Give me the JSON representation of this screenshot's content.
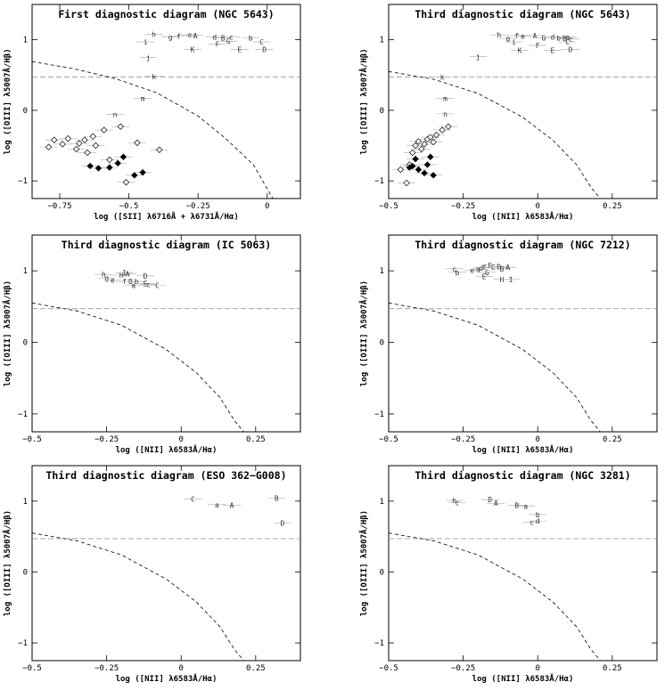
{
  "chart_data": [
    {
      "type": "scatter",
      "title": "First diagnostic diagram (NGC 5643)",
      "xlabel": "log ([SII] λ6716Å + λ6731Å/Hα)",
      "ylabel": "log ([OIII] λ5007Å/Hβ)",
      "xlim": [
        -0.85,
        0.12
      ],
      "ylim": [
        -1.25,
        1.5
      ],
      "xticks": [
        -0.75,
        -0.5,
        -0.25,
        0
      ],
      "xticklabels": [
        "−0.75",
        "−0.5",
        "−0.25",
        "0"
      ],
      "yticks": [
        -1,
        0,
        1
      ],
      "yticklabels": [
        "−1",
        "0",
        "1"
      ],
      "dashed_curve": [
        [
          -0.85,
          0.69
        ],
        [
          -0.7,
          0.59
        ],
        [
          -0.55,
          0.45
        ],
        [
          -0.4,
          0.25
        ],
        [
          -0.25,
          -0.08
        ],
        [
          -0.15,
          -0.4
        ],
        [
          -0.05,
          -0.77
        ],
        [
          0.02,
          -1.25
        ]
      ],
      "reference_line_y": 0.47,
      "series": [
        {
          "marker": "label",
          "points": [
            {
              "label": "h",
              "x": -0.41,
              "y": 1.08
            },
            {
              "label": "g",
              "x": -0.35,
              "y": 1.04
            },
            {
              "label": "f",
              "x": -0.32,
              "y": 1.05
            },
            {
              "label": "e",
              "x": -0.28,
              "y": 1.07
            },
            {
              "label": "A",
              "x": -0.26,
              "y": 1.06
            },
            {
              "label": "i",
              "x": -0.44,
              "y": 0.97
            },
            {
              "label": "d",
              "x": -0.19,
              "y": 1.04
            },
            {
              "label": "B",
              "x": -0.16,
              "y": 1.03
            },
            {
              "label": "c",
              "x": -0.13,
              "y": 1.04
            },
            {
              "label": "F",
              "x": -0.18,
              "y": 0.94
            },
            {
              "label": "G",
              "x": -0.14,
              "y": 0.98
            },
            {
              "label": "K",
              "x": -0.27,
              "y": 0.86
            },
            {
              "label": "E",
              "x": -0.1,
              "y": 0.86
            },
            {
              "label": "b",
              "x": -0.06,
              "y": 1.03
            },
            {
              "label": "C",
              "x": -0.02,
              "y": 0.97
            },
            {
              "label": "D",
              "x": -0.01,
              "y": 0.86
            },
            {
              "label": "j",
              "x": -0.43,
              "y": 0.75
            },
            {
              "label": "k",
              "x": -0.41,
              "y": 0.48
            },
            {
              "label": "m",
              "x": -0.45,
              "y": 0.17
            },
            {
              "label": "n",
              "x": -0.55,
              "y": -0.06
            }
          ]
        },
        {
          "marker": "open-diamond",
          "points": [
            [
              -0.79,
              -0.52
            ],
            [
              -0.77,
              -0.42
            ],
            [
              -0.74,
              -0.48
            ],
            [
              -0.72,
              -0.4
            ],
            [
              -0.69,
              -0.55
            ],
            [
              -0.68,
              -0.47
            ],
            [
              -0.66,
              -0.42
            ],
            [
              -0.65,
              -0.6
            ],
            [
              -0.63,
              -0.37
            ],
            [
              -0.62,
              -0.5
            ],
            [
              -0.59,
              -0.28
            ],
            [
              -0.53,
              -0.23
            ],
            [
              -0.47,
              -0.46
            ],
            [
              -0.39,
              -0.56
            ],
            [
              -0.51,
              -1.02
            ],
            [
              -0.57,
              -0.7
            ]
          ]
        },
        {
          "marker": "filled-diamond",
          "points": [
            [
              -0.64,
              -0.79
            ],
            [
              -0.61,
              -0.82
            ],
            [
              -0.57,
              -0.81
            ],
            [
              -0.54,
              -0.75
            ],
            [
              -0.52,
              -0.66
            ],
            [
              -0.48,
              -0.92
            ],
            [
              -0.45,
              -0.88
            ]
          ]
        }
      ]
    },
    {
      "type": "scatter",
      "title": "Third diagnostic diagram (NGC 5643)",
      "xlabel": "log ([NII] λ6583Å/Hα)",
      "ylabel": "log ([OIII] λ5007Å/Hβ)",
      "xlim": [
        -0.5,
        0.4
      ],
      "ylim": [
        -1.25,
        1.5
      ],
      "xticks": [
        -0.5,
        -0.25,
        0,
        0.25
      ],
      "xticklabels": [
        "−0.5",
        "−0.25",
        "0",
        "0.25"
      ],
      "yticks": [
        -1,
        0,
        1
      ],
      "yticklabels": [
        "−1",
        "0",
        "1"
      ],
      "dashed_curve": [
        [
          -0.5,
          0.55
        ],
        [
          -0.35,
          0.44
        ],
        [
          -0.2,
          0.24
        ],
        [
          -0.05,
          -0.1
        ],
        [
          0.05,
          -0.42
        ],
        [
          0.13,
          -0.77
        ],
        [
          0.18,
          -1.1
        ],
        [
          0.21,
          -1.25
        ]
      ],
      "reference_line_y": 0.47,
      "series": [
        {
          "marker": "label",
          "points": [
            {
              "label": "h",
              "x": -0.13,
              "y": 1.07
            },
            {
              "label": "g",
              "x": -0.1,
              "y": 1.02
            },
            {
              "label": "f",
              "x": -0.07,
              "y": 1.06
            },
            {
              "label": "e",
              "x": -0.05,
              "y": 1.05
            },
            {
              "label": "A",
              "x": -0.01,
              "y": 1.06
            },
            {
              "label": "G",
              "x": 0.02,
              "y": 1.03
            },
            {
              "label": "d",
              "x": 0.05,
              "y": 1.04
            },
            {
              "label": "b",
              "x": 0.07,
              "y": 1.03
            },
            {
              "label": "B",
              "x": 0.09,
              "y": 1.02
            },
            {
              "label": "a",
              "x": 0.1,
              "y": 1.04
            },
            {
              "label": "c",
              "x": 0.11,
              "y": 1.01
            },
            {
              "label": "i",
              "x": -0.08,
              "y": 0.97
            },
            {
              "label": "C",
              "x": 0.1,
              "y": 0.97
            },
            {
              "label": "F",
              "x": 0.0,
              "y": 0.92
            },
            {
              "label": "E",
              "x": 0.05,
              "y": 0.85
            },
            {
              "label": "K",
              "x": -0.06,
              "y": 0.85
            },
            {
              "label": "D",
              "x": 0.11,
              "y": 0.86
            },
            {
              "label": "j",
              "x": -0.2,
              "y": 0.76
            },
            {
              "label": "k",
              "x": -0.32,
              "y": 0.47
            },
            {
              "label": "m",
              "x": -0.31,
              "y": 0.17
            },
            {
              "label": "n",
              "x": -0.31,
              "y": -0.05
            }
          ]
        },
        {
          "marker": "open-diamond",
          "points": [
            [
              -0.46,
              -0.84
            ],
            [
              -0.44,
              -1.03
            ],
            [
              -0.43,
              -0.77
            ],
            [
              -0.42,
              -0.6
            ],
            [
              -0.41,
              -0.5
            ],
            [
              -0.4,
              -0.44
            ],
            [
              -0.39,
              -0.55
            ],
            [
              -0.38,
              -0.48
            ],
            [
              -0.37,
              -0.41
            ],
            [
              -0.36,
              -0.38
            ],
            [
              -0.35,
              -0.45
            ],
            [
              -0.34,
              -0.35
            ],
            [
              -0.32,
              -0.28
            ],
            [
              -0.3,
              -0.23
            ]
          ]
        },
        {
          "marker": "filled-diamond",
          "points": [
            [
              -0.43,
              -0.81
            ],
            [
              -0.42,
              -0.79
            ],
            [
              -0.41,
              -0.69
            ],
            [
              -0.4,
              -0.84
            ],
            [
              -0.38,
              -0.89
            ],
            [
              -0.37,
              -0.77
            ],
            [
              -0.35,
              -0.92
            ],
            [
              -0.36,
              -0.66
            ]
          ]
        }
      ]
    },
    {
      "type": "scatter",
      "title": "Third diagnostic diagram (IC 5063)",
      "xlabel": "log ([NII] λ6583Å/Hα)",
      "ylabel": "log ([OIII] λ5007Å/Hβ)",
      "xlim": [
        -0.5,
        0.4
      ],
      "ylim": [
        -1.25,
        1.5
      ],
      "xticks": [
        -0.5,
        -0.25,
        0,
        0.25
      ],
      "xticklabels": [
        "−0.5",
        "−0.25",
        "0",
        "0.25"
      ],
      "yticks": [
        -1,
        0,
        1
      ],
      "yticklabels": [
        "−1",
        "0",
        "1"
      ],
      "dashed_curve": [
        [
          -0.5,
          0.55
        ],
        [
          -0.35,
          0.44
        ],
        [
          -0.2,
          0.24
        ],
        [
          -0.05,
          -0.1
        ],
        [
          0.05,
          -0.42
        ],
        [
          0.13,
          -0.77
        ],
        [
          0.18,
          -1.1
        ],
        [
          0.21,
          -1.25
        ]
      ],
      "reference_line_y": 0.47,
      "series": [
        {
          "marker": "label",
          "points": [
            {
              "label": "h",
              "x": -0.26,
              "y": 0.95
            },
            {
              "label": "g",
              "x": -0.25,
              "y": 0.9
            },
            {
              "label": "e",
              "x": -0.23,
              "y": 0.87
            },
            {
              "label": "H",
              "x": -0.2,
              "y": 0.94
            },
            {
              "label": "I",
              "x": -0.19,
              "y": 0.97
            },
            {
              "label": "A",
              "x": -0.18,
              "y": 0.96
            },
            {
              "label": "D",
              "x": -0.12,
              "y": 0.93
            },
            {
              "label": "f",
              "x": -0.19,
              "y": 0.85
            },
            {
              "label": "B",
              "x": -0.17,
              "y": 0.85
            },
            {
              "label": "b",
              "x": -0.15,
              "y": 0.85
            },
            {
              "label": "a",
              "x": -0.16,
              "y": 0.8
            },
            {
              "label": "E",
              "x": -0.12,
              "y": 0.82
            },
            {
              "label": "c",
              "x": -0.11,
              "y": 0.81
            },
            {
              "label": "C",
              "x": -0.08,
              "y": 0.8
            }
          ]
        }
      ]
    },
    {
      "type": "scatter",
      "title": "Third diagnostic diagram (NGC 7212)",
      "xlabel": "log ([NII] λ6583Å/Hα)",
      "ylabel": "log ([OIII] λ5007Å/Hβ)",
      "xlim": [
        -0.5,
        0.4
      ],
      "ylim": [
        -1.25,
        1.5
      ],
      "xticks": [
        -0.5,
        -0.25,
        0,
        0.25
      ],
      "xticklabels": [
        "−0.5",
        "−0.25",
        "0",
        "0.25"
      ],
      "yticks": [
        -1,
        0,
        1
      ],
      "yticklabels": [
        "−1",
        "0",
        "1"
      ],
      "dashed_curve": [
        [
          -0.5,
          0.55
        ],
        [
          -0.35,
          0.44
        ],
        [
          -0.2,
          0.24
        ],
        [
          -0.05,
          -0.1
        ],
        [
          0.05,
          -0.42
        ],
        [
          0.13,
          -0.77
        ],
        [
          0.18,
          -1.1
        ],
        [
          0.21,
          -1.25
        ]
      ],
      "reference_line_y": 0.47,
      "series": [
        {
          "marker": "label",
          "points": [
            {
              "label": "c",
              "x": -0.28,
              "y": 1.03
            },
            {
              "label": "b",
              "x": -0.27,
              "y": 0.98
            },
            {
              "label": "e",
              "x": -0.22,
              "y": 1.01
            },
            {
              "label": "a",
              "x": -0.2,
              "y": 1.02
            },
            {
              "label": "d",
              "x": -0.19,
              "y": 1.04
            },
            {
              "label": "f",
              "x": -0.18,
              "y": 1.05
            },
            {
              "label": "G",
              "x": -0.17,
              "y": 0.98
            },
            {
              "label": "F",
              "x": -0.16,
              "y": 1.08
            },
            {
              "label": "C",
              "x": -0.15,
              "y": 1.05
            },
            {
              "label": "D",
              "x": -0.13,
              "y": 1.06
            },
            {
              "label": "B",
              "x": -0.12,
              "y": 1.03
            },
            {
              "label": "A",
              "x": -0.1,
              "y": 1.05
            },
            {
              "label": "E",
              "x": -0.18,
              "y": 0.92
            },
            {
              "label": "H",
              "x": -0.12,
              "y": 0.88
            },
            {
              "label": "I",
              "x": -0.09,
              "y": 0.88
            }
          ]
        }
      ]
    },
    {
      "type": "scatter",
      "title": "Third diagnostic diagram (ESO 362−G008)",
      "xlabel": "log ([NII] λ6583Å/Hα)",
      "ylabel": "log ([OIII] λ5007Å/Hβ)",
      "xlim": [
        -0.5,
        0.4
      ],
      "ylim": [
        -1.25,
        1.5
      ],
      "xticks": [
        -0.5,
        -0.25,
        0,
        0.25
      ],
      "xticklabels": [
        "−0.5",
        "−0.25",
        "0",
        "0.25"
      ],
      "yticks": [
        -1,
        0,
        1
      ],
      "yticklabels": [
        "−1",
        "0",
        "1"
      ],
      "dashed_curve": [
        [
          -0.5,
          0.55
        ],
        [
          -0.35,
          0.44
        ],
        [
          -0.2,
          0.24
        ],
        [
          -0.05,
          -0.1
        ],
        [
          0.05,
          -0.42
        ],
        [
          0.13,
          -0.77
        ],
        [
          0.18,
          -1.1
        ],
        [
          0.21,
          -1.25
        ]
      ],
      "reference_line_y": 0.47,
      "series": [
        {
          "marker": "label",
          "points": [
            {
              "label": "C",
              "x": 0.04,
              "y": 1.03
            },
            {
              "label": "a",
              "x": 0.12,
              "y": 0.95
            },
            {
              "label": "A",
              "x": 0.17,
              "y": 0.94
            },
            {
              "label": "B",
              "x": 0.32,
              "y": 1.04
            },
            {
              "label": "D",
              "x": 0.34,
              "y": 0.69
            }
          ]
        }
      ]
    },
    {
      "type": "scatter",
      "title": "Third diagnostic diagram (NGC 3281)",
      "xlabel": "log ([NII] λ6583Å/Hα)",
      "ylabel": "log ([OIII] λ5007Å/Hβ)",
      "xlim": [
        -0.5,
        0.4
      ],
      "ylim": [
        -1.25,
        1.5
      ],
      "xticks": [
        -0.5,
        -0.25,
        0,
        0.25
      ],
      "xticklabels": [
        "−0.5",
        "−0.25",
        "0",
        "0.25"
      ],
      "yticks": [
        -1,
        0,
        1
      ],
      "yticklabels": [
        "−1",
        "0",
        "1"
      ],
      "dashed_curve": [
        [
          -0.5,
          0.55
        ],
        [
          -0.35,
          0.44
        ],
        [
          -0.2,
          0.24
        ],
        [
          -0.05,
          -0.1
        ],
        [
          0.05,
          -0.42
        ],
        [
          0.13,
          -0.77
        ],
        [
          0.18,
          -1.1
        ],
        [
          0.21,
          -1.25
        ]
      ],
      "reference_line_y": 0.47,
      "series": [
        {
          "marker": "label",
          "points": [
            {
              "label": "b",
              "x": -0.28,
              "y": 1.01
            },
            {
              "label": "c",
              "x": -0.27,
              "y": 0.98
            },
            {
              "label": "D",
              "x": -0.16,
              "y": 1.02
            },
            {
              "label": "A",
              "x": -0.14,
              "y": 0.97
            },
            {
              "label": "B",
              "x": -0.07,
              "y": 0.94
            },
            {
              "label": "a",
              "x": -0.04,
              "y": 0.93
            },
            {
              "label": "b",
              "x": 0.0,
              "y": 0.81
            },
            {
              "label": "c",
              "x": -0.02,
              "y": 0.7
            },
            {
              "label": "d",
              "x": 0.0,
              "y": 0.72
            }
          ]
        }
      ]
    }
  ]
}
